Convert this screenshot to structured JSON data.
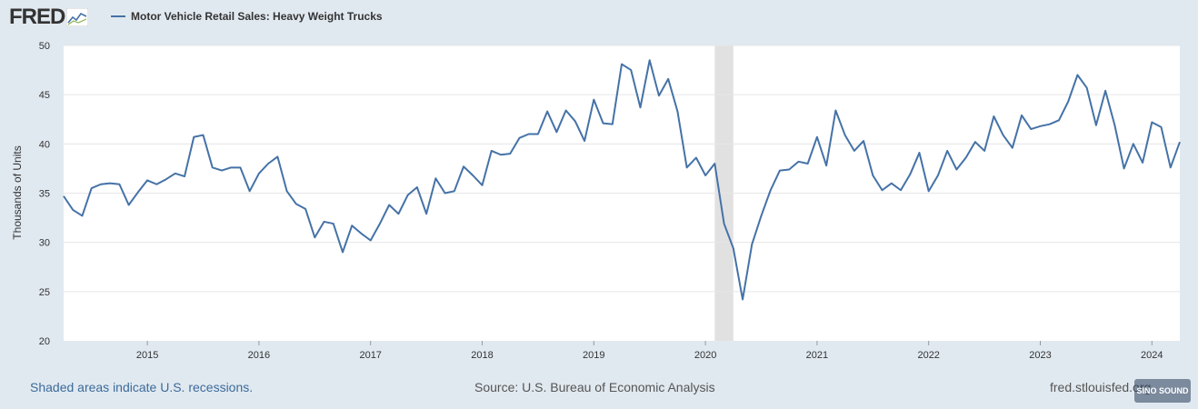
{
  "header": {
    "logo_text": "FRED"
  },
  "footer": {
    "recession_note": "Shaded areas indicate U.S. recessions.",
    "source": "Source: U.S. Bureau of Economic Analysis",
    "site": "fred.stlouisfed.org",
    "watermark": "SINO SOUND"
  },
  "colors": {
    "series": "#4572a7",
    "recession": "#e1e1e1",
    "background": "#e1e9f0"
  },
  "chart_data": {
    "type": "line",
    "title": "",
    "legend": [
      "Motor Vehicle Retail Sales: Heavy Weight Trucks"
    ],
    "xlabel": "",
    "ylabel": "Thousands of Units",
    "ylim": [
      20,
      50
    ],
    "yticks": [
      20,
      25,
      30,
      35,
      40,
      45,
      50
    ],
    "xlim": [
      "2014-04",
      "2024-04"
    ],
    "xticks": [
      "2015",
      "2016",
      "2017",
      "2018",
      "2019",
      "2020",
      "2021",
      "2022",
      "2023",
      "2024"
    ],
    "grid": true,
    "recessions": [
      {
        "start": "2020-02",
        "end": "2020-04"
      }
    ],
    "series": [
      {
        "name": "Motor Vehicle Retail Sales: Heavy Weight Trucks",
        "start": "2014-04",
        "frequency": "monthly",
        "values": [
          34.7,
          33.3,
          32.7,
          35.5,
          35.9,
          36.0,
          35.9,
          33.8,
          35.1,
          36.3,
          35.9,
          36.4,
          37.0,
          36.7,
          40.7,
          40.9,
          37.6,
          37.3,
          37.6,
          37.6,
          35.2,
          37.0,
          38.0,
          38.7,
          35.2,
          33.9,
          33.4,
          30.5,
          32.1,
          31.9,
          29.0,
          31.7,
          30.9,
          30.2,
          31.9,
          33.8,
          32.9,
          34.8,
          35.6,
          32.9,
          36.5,
          35.0,
          35.2,
          37.7,
          36.8,
          35.8,
          39.3,
          38.9,
          39.0,
          40.6,
          41.0,
          41.0,
          43.3,
          41.2,
          43.4,
          42.3,
          40.3,
          44.5,
          42.1,
          42.0,
          48.1,
          47.5,
          43.7,
          48.5,
          44.9,
          46.6,
          43.3,
          37.6,
          38.6,
          36.8,
          38.0,
          31.9,
          29.4,
          24.2,
          29.8,
          32.7,
          35.3,
          37.3,
          37.4,
          38.2,
          38.0,
          40.7,
          37.8,
          43.4,
          40.9,
          39.3,
          40.3,
          36.8,
          35.3,
          36.0,
          35.3,
          36.9,
          39.1,
          35.2,
          36.8,
          39.3,
          37.4,
          38.6,
          40.2,
          39.3,
          42.8,
          40.9,
          39.6,
          42.9,
          41.5,
          41.8,
          42.0,
          42.4,
          44.3,
          47.0,
          45.7,
          41.9,
          45.4,
          41.9,
          37.5,
          40.0,
          38.1,
          42.2,
          41.7,
          37.6,
          40.2
        ]
      }
    ]
  }
}
